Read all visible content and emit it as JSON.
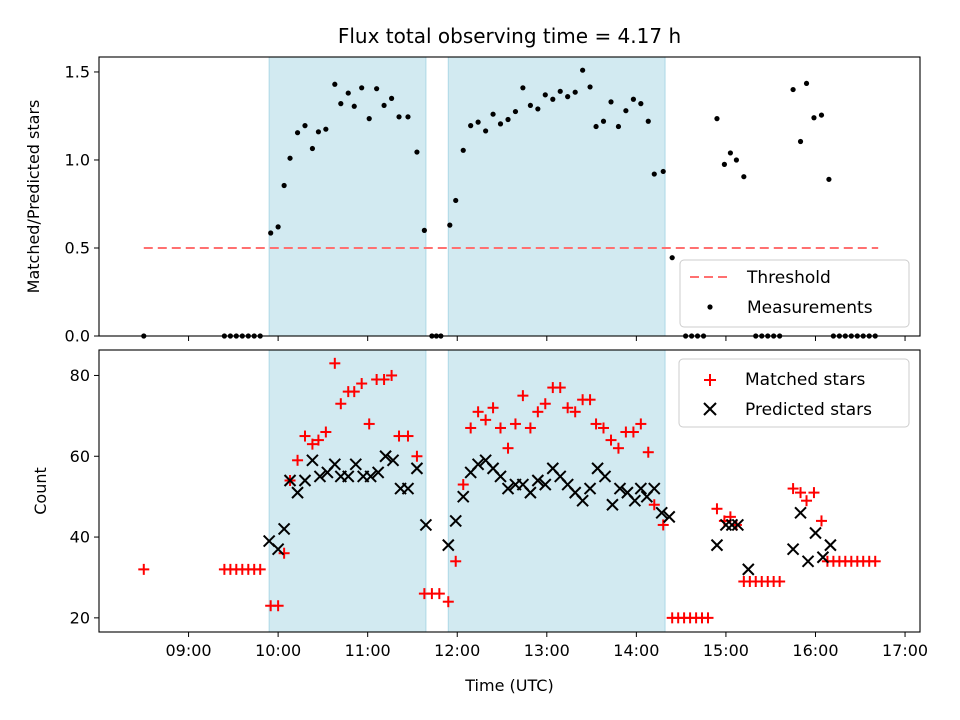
{
  "colors": {
    "band": "#add8e6",
    "threshold": "#ff7070",
    "matched": "#ff0000",
    "predicted": "#000000",
    "measurement": "#000000"
  },
  "chart_data": [
    {
      "type": "scatter",
      "title": "Flux total observing time = 4.17 h",
      "xlabel": "",
      "ylabel": "Matched/Predicted stars",
      "xlim": [
        8.0,
        17.167
      ],
      "ylim": [
        0.0,
        1.585
      ],
      "yticks": [
        0.0,
        0.5,
        1.0,
        1.5
      ],
      "ytick_labels": [
        "0.0",
        "0.5",
        "1.0",
        "1.5"
      ],
      "bands": [
        [
          9.9,
          11.65
        ],
        [
          11.9,
          14.32
        ]
      ],
      "threshold": {
        "value": 0.5,
        "x_range": [
          8.5,
          16.7
        ]
      },
      "legend": {
        "position": "lower-right",
        "entries": [
          "Threshold",
          "Measurements"
        ]
      },
      "series": [
        {
          "name": "Measurements",
          "points": [
            [
              8.5,
              0.0
            ],
            [
              9.4,
              0.0
            ],
            [
              9.467,
              0.0
            ],
            [
              9.533,
              0.0
            ],
            [
              9.6,
              0.0
            ],
            [
              9.667,
              0.0
            ],
            [
              9.733,
              0.0
            ],
            [
              9.8,
              0.0
            ],
            [
              9.917,
              0.585
            ],
            [
              10.0,
              0.62
            ],
            [
              10.067,
              0.855
            ],
            [
              10.133,
              1.01
            ],
            [
              10.217,
              1.155
            ],
            [
              10.3,
              1.195
            ],
            [
              10.383,
              1.065
            ],
            [
              10.45,
              1.16
            ],
            [
              10.533,
              1.175
            ],
            [
              10.633,
              1.43
            ],
            [
              10.7,
              1.32
            ],
            [
              10.783,
              1.38
            ],
            [
              10.85,
              1.305
            ],
            [
              10.933,
              1.41
            ],
            [
              11.017,
              1.235
            ],
            [
              11.1,
              1.405
            ],
            [
              11.183,
              1.31
            ],
            [
              11.267,
              1.35
            ],
            [
              11.35,
              1.245
            ],
            [
              11.45,
              1.245
            ],
            [
              11.55,
              1.045
            ],
            [
              11.633,
              0.6
            ],
            [
              11.717,
              0.0
            ],
            [
              11.767,
              0.0
            ],
            [
              11.817,
              0.0
            ],
            [
              11.917,
              0.63
            ],
            [
              11.983,
              0.77
            ],
            [
              12.067,
              1.055
            ],
            [
              12.15,
              1.195
            ],
            [
              12.233,
              1.215
            ],
            [
              12.317,
              1.165
            ],
            [
              12.4,
              1.26
            ],
            [
              12.483,
              1.205
            ],
            [
              12.567,
              1.23
            ],
            [
              12.65,
              1.275
            ],
            [
              12.733,
              1.41
            ],
            [
              12.817,
              1.31
            ],
            [
              12.9,
              1.29
            ],
            [
              12.983,
              1.37
            ],
            [
              13.067,
              1.345
            ],
            [
              13.15,
              1.39
            ],
            [
              13.233,
              1.36
            ],
            [
              13.317,
              1.385
            ],
            [
              13.4,
              1.51
            ],
            [
              13.483,
              1.415
            ],
            [
              13.55,
              1.19
            ],
            [
              13.633,
              1.22
            ],
            [
              13.717,
              1.33
            ],
            [
              13.8,
              1.19
            ],
            [
              13.883,
              1.28
            ],
            [
              13.967,
              1.345
            ],
            [
              14.05,
              1.32
            ],
            [
              14.133,
              1.22
            ],
            [
              14.2,
              0.92
            ],
            [
              14.3,
              0.935
            ],
            [
              14.4,
              0.445
            ],
            [
              14.55,
              0.0
            ],
            [
              14.617,
              0.0
            ],
            [
              14.683,
              0.0
            ],
            [
              14.75,
              0.0
            ],
            [
              14.9,
              1.235
            ],
            [
              14.983,
              0.975
            ],
            [
              15.05,
              1.04
            ],
            [
              15.117,
              1.0
            ],
            [
              15.2,
              0.905
            ],
            [
              15.333,
              0.0
            ],
            [
              15.4,
              0.0
            ],
            [
              15.467,
              0.0
            ],
            [
              15.533,
              0.0
            ],
            [
              15.6,
              0.0
            ],
            [
              15.75,
              1.4
            ],
            [
              15.833,
              1.105
            ],
            [
              15.9,
              1.435
            ],
            [
              15.983,
              1.24
            ],
            [
              16.067,
              1.255
            ],
            [
              16.15,
              0.89
            ],
            [
              16.2,
              0.0
            ],
            [
              16.267,
              0.0
            ],
            [
              16.333,
              0.0
            ],
            [
              16.4,
              0.0
            ],
            [
              16.467,
              0.0
            ],
            [
              16.533,
              0.0
            ],
            [
              16.6,
              0.0
            ],
            [
              16.667,
              0.0
            ]
          ]
        }
      ]
    },
    {
      "type": "scatter",
      "title": "",
      "xlabel": "Time (UTC)",
      "ylabel": "Count",
      "xlim": [
        8.0,
        17.167
      ],
      "ylim": [
        16.5,
        86.3
      ],
      "yticks": [
        20,
        40,
        60,
        80
      ],
      "ytick_labels": [
        "20",
        "40",
        "60",
        "80"
      ],
      "xticks": [
        9,
        10,
        11,
        12,
        13,
        14,
        15,
        16,
        17
      ],
      "xtick_labels": [
        "09:00",
        "10:00",
        "11:00",
        "12:00",
        "13:00",
        "14:00",
        "15:00",
        "16:00",
        "17:00"
      ],
      "bands": [
        [
          9.9,
          11.65
        ],
        [
          11.9,
          14.32
        ]
      ],
      "legend": {
        "position": "upper-right",
        "entries": [
          "Matched stars",
          "Predicted stars"
        ]
      },
      "series": [
        {
          "name": "Matched stars",
          "marker": "+",
          "points": [
            [
              8.5,
              32
            ],
            [
              9.4,
              32
            ],
            [
              9.467,
              32
            ],
            [
              9.533,
              32
            ],
            [
              9.6,
              32
            ],
            [
              9.667,
              32
            ],
            [
              9.733,
              32
            ],
            [
              9.8,
              32
            ],
            [
              9.917,
              23
            ],
            [
              10.0,
              23
            ],
            [
              10.067,
              36
            ],
            [
              10.133,
              54
            ],
            [
              10.217,
              59
            ],
            [
              10.3,
              65
            ],
            [
              10.383,
              63
            ],
            [
              10.45,
              64
            ],
            [
              10.533,
              66
            ],
            [
              10.633,
              83
            ],
            [
              10.7,
              73
            ],
            [
              10.783,
              76
            ],
            [
              10.85,
              76
            ],
            [
              10.933,
              78
            ],
            [
              11.017,
              68
            ],
            [
              11.1,
              79
            ],
            [
              11.183,
              79
            ],
            [
              11.267,
              80
            ],
            [
              11.35,
              65
            ],
            [
              11.45,
              65
            ],
            [
              11.55,
              60
            ],
            [
              11.633,
              26
            ],
            [
              11.717,
              26
            ],
            [
              11.8,
              26
            ],
            [
              11.9,
              24
            ],
            [
              11.983,
              34
            ],
            [
              12.067,
              53
            ],
            [
              12.15,
              67
            ],
            [
              12.233,
              71
            ],
            [
              12.317,
              69
            ],
            [
              12.4,
              72
            ],
            [
              12.483,
              67
            ],
            [
              12.567,
              62
            ],
            [
              12.65,
              68
            ],
            [
              12.733,
              75
            ],
            [
              12.817,
              67
            ],
            [
              12.9,
              71
            ],
            [
              12.983,
              73
            ],
            [
              13.067,
              77
            ],
            [
              13.15,
              77
            ],
            [
              13.233,
              72
            ],
            [
              13.317,
              71
            ],
            [
              13.4,
              74
            ],
            [
              13.483,
              74
            ],
            [
              13.55,
              68
            ],
            [
              13.633,
              67
            ],
            [
              13.717,
              64
            ],
            [
              13.8,
              62
            ],
            [
              13.883,
              66
            ],
            [
              13.967,
              66
            ],
            [
              14.05,
              68
            ],
            [
              14.133,
              61
            ],
            [
              14.2,
              48
            ],
            [
              14.3,
              43
            ],
            [
              14.4,
              20
            ],
            [
              14.467,
              20
            ],
            [
              14.533,
              20
            ],
            [
              14.6,
              20
            ],
            [
              14.667,
              20
            ],
            [
              14.733,
              20
            ],
            [
              14.8,
              20
            ],
            [
              14.9,
              47
            ],
            [
              14.983,
              44
            ],
            [
              15.05,
              45
            ],
            [
              15.117,
              43
            ],
            [
              15.2,
              29
            ],
            [
              15.267,
              29
            ],
            [
              15.333,
              29
            ],
            [
              15.4,
              29
            ],
            [
              15.467,
              29
            ],
            [
              15.533,
              29
            ],
            [
              15.6,
              29
            ],
            [
              15.75,
              52
            ],
            [
              15.833,
              51
            ],
            [
              15.9,
              49
            ],
            [
              15.983,
              51
            ],
            [
              16.067,
              44
            ],
            [
              16.133,
              34
            ],
            [
              16.2,
              34
            ],
            [
              16.267,
              34
            ],
            [
              16.333,
              34
            ],
            [
              16.4,
              34
            ],
            [
              16.467,
              34
            ],
            [
              16.533,
              34
            ],
            [
              16.6,
              34
            ],
            [
              16.667,
              34
            ]
          ]
        },
        {
          "name": "Predicted stars",
          "marker": "x",
          "points": [
            [
              9.9,
              39
            ],
            [
              10.0,
              37
            ],
            [
              10.067,
              42
            ],
            [
              10.133,
              54
            ],
            [
              10.217,
              51
            ],
            [
              10.3,
              54
            ],
            [
              10.383,
              59
            ],
            [
              10.467,
              55
            ],
            [
              10.55,
              56
            ],
            [
              10.633,
              58
            ],
            [
              10.7,
              55
            ],
            [
              10.783,
              55
            ],
            [
              10.867,
              58
            ],
            [
              10.95,
              55
            ],
            [
              11.033,
              55
            ],
            [
              11.117,
              56
            ],
            [
              11.2,
              60
            ],
            [
              11.283,
              59
            ],
            [
              11.367,
              52
            ],
            [
              11.45,
              52
            ],
            [
              11.55,
              57
            ],
            [
              11.65,
              43
            ],
            [
              11.9,
              38
            ],
            [
              11.983,
              44
            ],
            [
              12.067,
              50
            ],
            [
              12.15,
              56
            ],
            [
              12.233,
              58
            ],
            [
              12.317,
              59
            ],
            [
              12.4,
              57
            ],
            [
              12.483,
              55
            ],
            [
              12.567,
              52
            ],
            [
              12.65,
              53
            ],
            [
              12.733,
              53
            ],
            [
              12.817,
              51
            ],
            [
              12.9,
              54
            ],
            [
              12.983,
              53
            ],
            [
              13.067,
              57
            ],
            [
              13.15,
              55
            ],
            [
              13.233,
              53
            ],
            [
              13.317,
              51
            ],
            [
              13.4,
              49
            ],
            [
              13.483,
              52
            ],
            [
              13.567,
              57
            ],
            [
              13.65,
              55
            ],
            [
              13.733,
              48
            ],
            [
              13.817,
              52
            ],
            [
              13.9,
              51
            ],
            [
              13.983,
              49
            ],
            [
              14.05,
              52
            ],
            [
              14.117,
              50
            ],
            [
              14.2,
              52
            ],
            [
              14.283,
              46
            ],
            [
              14.367,
              45
            ],
            [
              14.9,
              38
            ],
            [
              15.0,
              43
            ],
            [
              15.067,
              43
            ],
            [
              15.133,
              43
            ],
            [
              15.25,
              32
            ],
            [
              15.75,
              37
            ],
            [
              15.833,
              46
            ],
            [
              15.917,
              34
            ],
            [
              16.0,
              41
            ],
            [
              16.083,
              35
            ],
            [
              16.167,
              38
            ]
          ]
        }
      ]
    }
  ]
}
